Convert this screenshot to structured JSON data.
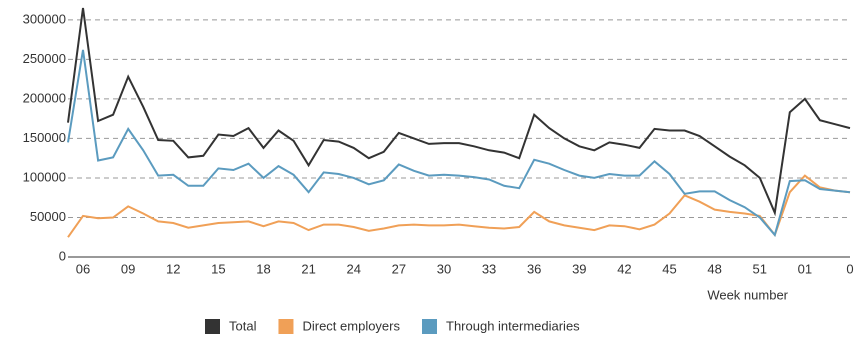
{
  "chart_data": {
    "type": "line",
    "categories": [
      null,
      "06",
      null,
      null,
      "09",
      null,
      null,
      "12",
      null,
      null,
      "15",
      null,
      null,
      "18",
      null,
      null,
      "21",
      null,
      null,
      "24",
      null,
      null,
      "27",
      null,
      null,
      "30",
      null,
      null,
      "33",
      null,
      null,
      "36",
      null,
      null,
      "39",
      null,
      null,
      "42",
      null,
      null,
      "45",
      null,
      null,
      "48",
      null,
      null,
      "51",
      null,
      null,
      "01",
      null,
      null,
      "0"
    ],
    "x_label": "Week number",
    "series": [
      {
        "name": "Total",
        "color": "#333333",
        "values": [
          170000,
          315000,
          172000,
          180000,
          228000,
          190000,
          148000,
          147000,
          126000,
          128000,
          155000,
          153000,
          163000,
          138000,
          160000,
          147000,
          116000,
          148000,
          146000,
          138000,
          125000,
          133000,
          157000,
          150000,
          143000,
          144000,
          144000,
          140000,
          135000,
          132000,
          125000,
          180000,
          163000,
          150000,
          140000,
          135000,
          145000,
          142000,
          138000,
          162000,
          160000,
          160000,
          153000,
          140000,
          127000,
          116000,
          100000,
          56000,
          183000,
          200000,
          173000,
          168000,
          163000
        ]
      },
      {
        "name": "Direct employers",
        "color": "#f0a057",
        "values": [
          25000,
          52000,
          49000,
          50000,
          64000,
          55000,
          45000,
          43000,
          37000,
          40000,
          43000,
          44000,
          45000,
          39000,
          45000,
          43000,
          34000,
          41000,
          41000,
          38000,
          33000,
          36000,
          40000,
          41000,
          40000,
          40000,
          41000,
          39000,
          37000,
          36000,
          38000,
          57000,
          45000,
          40000,
          37000,
          34000,
          40000,
          39000,
          35000,
          41000,
          55000,
          78000,
          70000,
          60000,
          57000,
          55000,
          52000,
          28000,
          82000,
          103000,
          88000,
          84000,
          82000
        ]
      },
      {
        "name": "Through intermediaries",
        "color": "#5b9bbf",
        "values": [
          145000,
          262000,
          122000,
          126000,
          162000,
          135000,
          103000,
          104000,
          90000,
          90000,
          112000,
          110000,
          118000,
          100000,
          115000,
          104000,
          82000,
          107000,
          105000,
          100000,
          92000,
          97000,
          117000,
          109000,
          103000,
          104000,
          103000,
          101000,
          98000,
          90000,
          87000,
          123000,
          118000,
          110000,
          103000,
          100000,
          105000,
          103000,
          103000,
          121000,
          105000,
          80000,
          83000,
          83000,
          72000,
          63000,
          50000,
          28000,
          96000,
          97000,
          86000,
          84000,
          82000
        ]
      }
    ],
    "ylim": [
      0,
      320000
    ],
    "yticks": [
      0,
      50000,
      100000,
      150000,
      200000,
      250000,
      300000
    ],
    "grid": true
  }
}
